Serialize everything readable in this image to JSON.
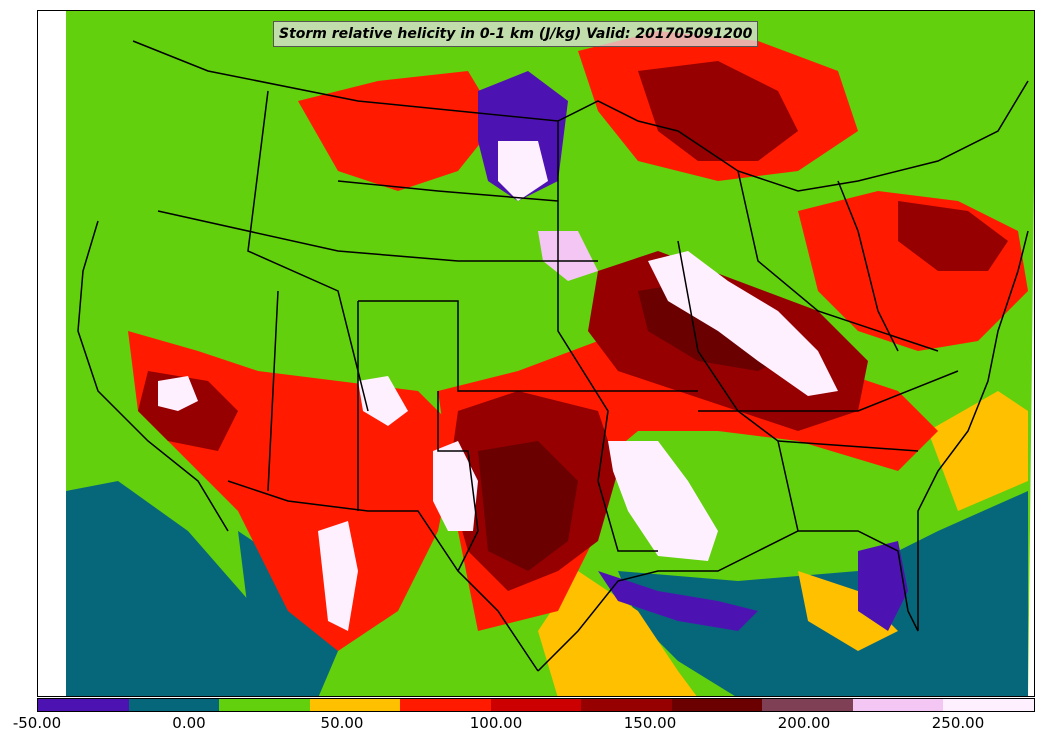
{
  "title": "Storm relative helicity in 0-1 km (J/kg) Valid: 201705091200",
  "colorbar": {
    "colors": [
      "#4d13b2",
      "#07677a",
      "#62d00c",
      "#ffc000",
      "#ff1a00",
      "#cc0000",
      "#960000",
      "#6a0000",
      "#7f3f54",
      "#f3c6f3",
      "#fff0ff"
    ],
    "tick_labels": [
      "-50.00",
      "0.00",
      "50.00",
      "100.00",
      "150.00",
      "200.00",
      "250.00"
    ]
  },
  "map": {
    "projection": "Lambert conformal (CONUS)",
    "field_colors": {
      "neg50": "#4d13b2",
      "neg25": "#07677a",
      "zero": "#62d00c",
      "p25": "#ffc000",
      "p50": "#ff1a00",
      "p75": "#cc0000",
      "p100": "#960000",
      "p125": "#6a0000",
      "p150": "#7f3f54",
      "p175": "#f3c6f3",
      "p200": "#fff0ff"
    }
  }
}
